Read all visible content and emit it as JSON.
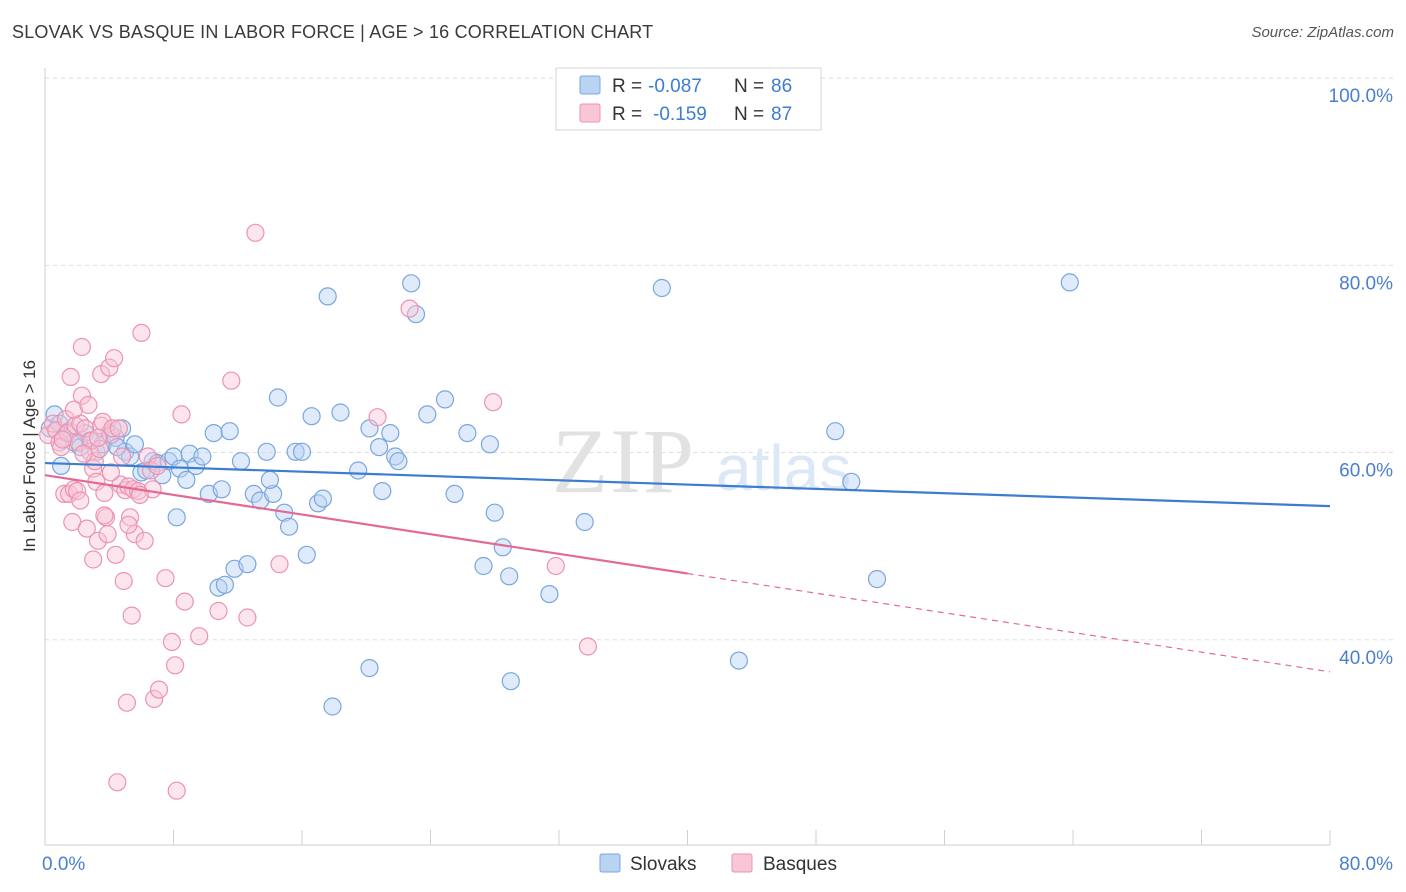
{
  "title": "SLOVAK VS BASQUE IN LABOR FORCE | AGE > 16 CORRELATION CHART",
  "source": "Source: ZipAtlas.com",
  "watermark": {
    "zip": "ZIP",
    "atlas": "atlas"
  },
  "legend_top": [
    {
      "r_label": "R =",
      "r_value": "-0.087",
      "n_label": "N =",
      "n_value": "86",
      "fill": "#b9d3f3",
      "stroke": "#7aa6de"
    },
    {
      "r_label": "R =",
      "r_value": "-0.159",
      "n_label": "N =",
      "n_value": "87",
      "fill": "#f8c6d6",
      "stroke": "#ec93b0"
    }
  ],
  "legend_bottom": [
    {
      "label": "Slovaks",
      "fill": "#b9d3f3",
      "stroke": "#7aa6de"
    },
    {
      "label": "Basques",
      "fill": "#f8c6d6",
      "stroke": "#ec93b0"
    }
  ],
  "colors": {
    "blue": "#3c7dd0",
    "pink": "#e26a95",
    "grid": "#dedede",
    "axis_text": "#4a7fd0"
  },
  "chart_data": {
    "type": "scatter",
    "title": "SLOVAK VS BASQUE IN LABOR FORCE | AGE > 16 CORRELATION CHART",
    "xlabel": "",
    "ylabel": "In Labor Force | Age > 16",
    "xlim": [
      0,
      80
    ],
    "ylim": [
      20,
      103
    ],
    "x_tick_labels": [
      {
        "value": 0,
        "label": "0.0%"
      },
      {
        "value": 80,
        "label": "80.0%"
      }
    ],
    "y_tick_labels": [
      {
        "value": 100,
        "label": "100.0%"
      },
      {
        "value": 80,
        "label": "80.0%"
      },
      {
        "value": 60,
        "label": "60.0%"
      },
      {
        "value": 40,
        "label": "40.0%"
      }
    ],
    "grid": true,
    "legend_position": "top-center",
    "series": [
      {
        "name": "Slovaks",
        "color": "#7aa6de",
        "trend": {
          "x": [
            0,
            80
          ],
          "y": [
            60.8,
            56.2
          ],
          "style": "solid"
        },
        "points": [
          [
            0.3,
            64.5
          ],
          [
            0.6,
            66
          ],
          [
            0.9,
            65
          ],
          [
            1.2,
            63.5
          ],
          [
            1.5,
            64.2
          ],
          [
            1.8,
            63
          ],
          [
            2.2,
            62.5
          ],
          [
            2.5,
            64
          ],
          [
            2.8,
            63.2
          ],
          [
            3.2,
            62
          ],
          [
            3.6,
            62.8
          ],
          [
            4.0,
            64
          ],
          [
            4.4,
            63.5
          ],
          [
            4.8,
            64.5
          ],
          [
            5.0,
            62
          ],
          [
            5.3,
            61.5
          ],
          [
            5.6,
            62.8
          ],
          [
            6.0,
            59.8
          ],
          [
            6.3,
            60
          ],
          [
            6.7,
            61
          ],
          [
            7.0,
            60.8
          ],
          [
            7.3,
            59.5
          ],
          [
            7.7,
            61
          ],
          [
            8.0,
            61.5
          ],
          [
            8.4,
            60.2
          ],
          [
            8.8,
            59
          ],
          [
            9.0,
            61.8
          ],
          [
            9.4,
            60.5
          ],
          [
            9.8,
            61.5
          ],
          [
            10.2,
            57.5
          ],
          [
            10.5,
            64
          ],
          [
            10.8,
            47.5
          ],
          [
            11.0,
            58
          ],
          [
            11.2,
            47.8
          ],
          [
            11.5,
            64.2
          ],
          [
            11.8,
            49.5
          ],
          [
            12.2,
            61
          ],
          [
            12.6,
            50
          ],
          [
            13.0,
            57.5
          ],
          [
            13.4,
            56.8
          ],
          [
            13.8,
            62
          ],
          [
            14.2,
            57.5
          ],
          [
            14.5,
            67.8
          ],
          [
            14.9,
            55.5
          ],
          [
            15.2,
            54
          ],
          [
            15.6,
            62
          ],
          [
            16.0,
            62
          ],
          [
            16.3,
            51
          ],
          [
            16.6,
            65.8
          ],
          [
            17.0,
            56.5
          ],
          [
            17.3,
            57
          ],
          [
            17.6,
            78.6
          ],
          [
            17.9,
            34.8
          ],
          [
            18.4,
            66.2
          ],
          [
            19.5,
            60
          ],
          [
            20.2,
            38.9
          ],
          [
            20.2,
            64.5
          ],
          [
            20.8,
            62.5
          ],
          [
            21.0,
            57.8
          ],
          [
            21.5,
            64
          ],
          [
            21.8,
            61.5
          ],
          [
            22.0,
            61
          ],
          [
            22.8,
            80
          ],
          [
            23.1,
            76.7
          ],
          [
            23.8,
            66
          ],
          [
            24.9,
            67.6
          ],
          [
            25.5,
            57.5
          ],
          [
            26.3,
            64
          ],
          [
            27.3,
            49.8
          ],
          [
            27.7,
            62.8
          ],
          [
            28.0,
            55.5
          ],
          [
            28.5,
            51.8
          ],
          [
            28.9,
            48.7
          ],
          [
            29.0,
            37.5
          ],
          [
            31.4,
            46.8
          ],
          [
            33.6,
            54.5
          ],
          [
            38.4,
            79.5
          ],
          [
            43.2,
            39.7
          ],
          [
            49.2,
            64.2
          ],
          [
            50.2,
            58.8
          ],
          [
            51.8,
            48.4
          ],
          [
            63.8,
            80.1
          ],
          [
            1.0,
            60.5
          ],
          [
            4.5,
            62.5
          ],
          [
            8.2,
            55
          ],
          [
            14.0,
            59
          ]
        ]
      },
      {
        "name": "Basques",
        "color": "#ec93b0",
        "trend": {
          "x": [
            0,
            40
          ],
          "y": [
            59.5,
            49.0
          ],
          "style": "solid",
          "dashed_extension": {
            "x": [
              40,
              80
            ],
            "y": [
              49.0,
              38.5
            ]
          }
        },
        "points": [
          [
            0.2,
            63.8
          ],
          [
            0.5,
            65
          ],
          [
            0.7,
            64.3
          ],
          [
            0.9,
            63
          ],
          [
            1.0,
            62.5
          ],
          [
            1.2,
            57.5
          ],
          [
            1.3,
            65.5
          ],
          [
            1.4,
            64
          ],
          [
            1.5,
            57.5
          ],
          [
            1.6,
            70
          ],
          [
            1.7,
            54.5
          ],
          [
            1.8,
            58
          ],
          [
            1.9,
            64.8
          ],
          [
            2.0,
            57.8
          ],
          [
            2.1,
            63
          ],
          [
            2.2,
            56.8
          ],
          [
            2.2,
            65
          ],
          [
            2.3,
            68
          ],
          [
            2.3,
            73.2
          ],
          [
            2.5,
            64.5
          ],
          [
            2.6,
            53.8
          ],
          [
            2.8,
            62
          ],
          [
            2.9,
            63.2
          ],
          [
            3.0,
            60.2
          ],
          [
            3.0,
            50.5
          ],
          [
            3.1,
            61
          ],
          [
            3.2,
            58.8
          ],
          [
            3.3,
            52.5
          ],
          [
            3.4,
            62.3
          ],
          [
            3.5,
            70.3
          ],
          [
            3.5,
            64.8
          ],
          [
            3.6,
            65.2
          ],
          [
            3.7,
            57.6
          ],
          [
            3.8,
            55
          ],
          [
            3.9,
            53.2
          ],
          [
            4.0,
            71
          ],
          [
            4.1,
            63.8
          ],
          [
            4.2,
            64.5
          ],
          [
            4.3,
            72
          ],
          [
            4.4,
            51
          ],
          [
            4.5,
            26.7
          ],
          [
            4.6,
            64.5
          ],
          [
            4.7,
            58.5
          ],
          [
            4.8,
            61.5
          ],
          [
            4.9,
            48.2
          ],
          [
            5.0,
            57.9
          ],
          [
            5.1,
            35.2
          ],
          [
            5.2,
            58.3
          ],
          [
            5.3,
            55
          ],
          [
            5.4,
            44.5
          ],
          [
            5.5,
            58
          ],
          [
            5.6,
            53.2
          ],
          [
            5.8,
            57.8
          ],
          [
            6.0,
            74.7
          ],
          [
            6.2,
            52.5
          ],
          [
            6.4,
            61.5
          ],
          [
            6.6,
            60
          ],
          [
            6.8,
            35.6
          ],
          [
            7.1,
            36.6
          ],
          [
            7.5,
            48.5
          ],
          [
            7.9,
            41.7
          ],
          [
            8.1,
            39.2
          ],
          [
            8.2,
            25.8
          ],
          [
            8.5,
            66
          ],
          [
            8.7,
            46
          ],
          [
            9.6,
            42.3
          ],
          [
            10.8,
            45
          ],
          [
            11.6,
            69.6
          ],
          [
            12.6,
            44.3
          ],
          [
            13.1,
            85.4
          ],
          [
            14.6,
            50
          ],
          [
            20.7,
            65.7
          ],
          [
            22.7,
            77.3
          ],
          [
            27.9,
            67.3
          ],
          [
            31.8,
            49.8
          ],
          [
            33.8,
            41.2
          ],
          [
            3.3,
            63.5
          ],
          [
            1.1,
            63.3
          ],
          [
            6.7,
            58
          ],
          [
            5.9,
            57.4
          ],
          [
            2.4,
            61.8
          ],
          [
            4.1,
            59.8
          ],
          [
            3.7,
            55.2
          ],
          [
            1.8,
            66.5
          ],
          [
            2.7,
            67
          ],
          [
            7.0,
            60.5
          ],
          [
            5.2,
            54.2
          ]
        ]
      }
    ]
  }
}
